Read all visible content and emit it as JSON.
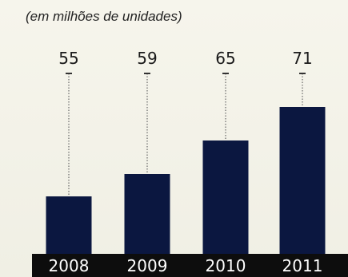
{
  "chart_data": {
    "type": "bar",
    "subtitle": "(em milhões de unidades)",
    "categories": [
      "2008",
      "2009",
      "2010",
      "2011"
    ],
    "values": [
      55,
      59,
      65,
      71
    ],
    "ylim": [
      45,
      75
    ],
    "grid": false,
    "legend": "none",
    "colors": {
      "bar": "#0b1740",
      "axis_band": "#0d0d0d",
      "leader_line": "#666666",
      "background": "#f3f1e6"
    }
  }
}
